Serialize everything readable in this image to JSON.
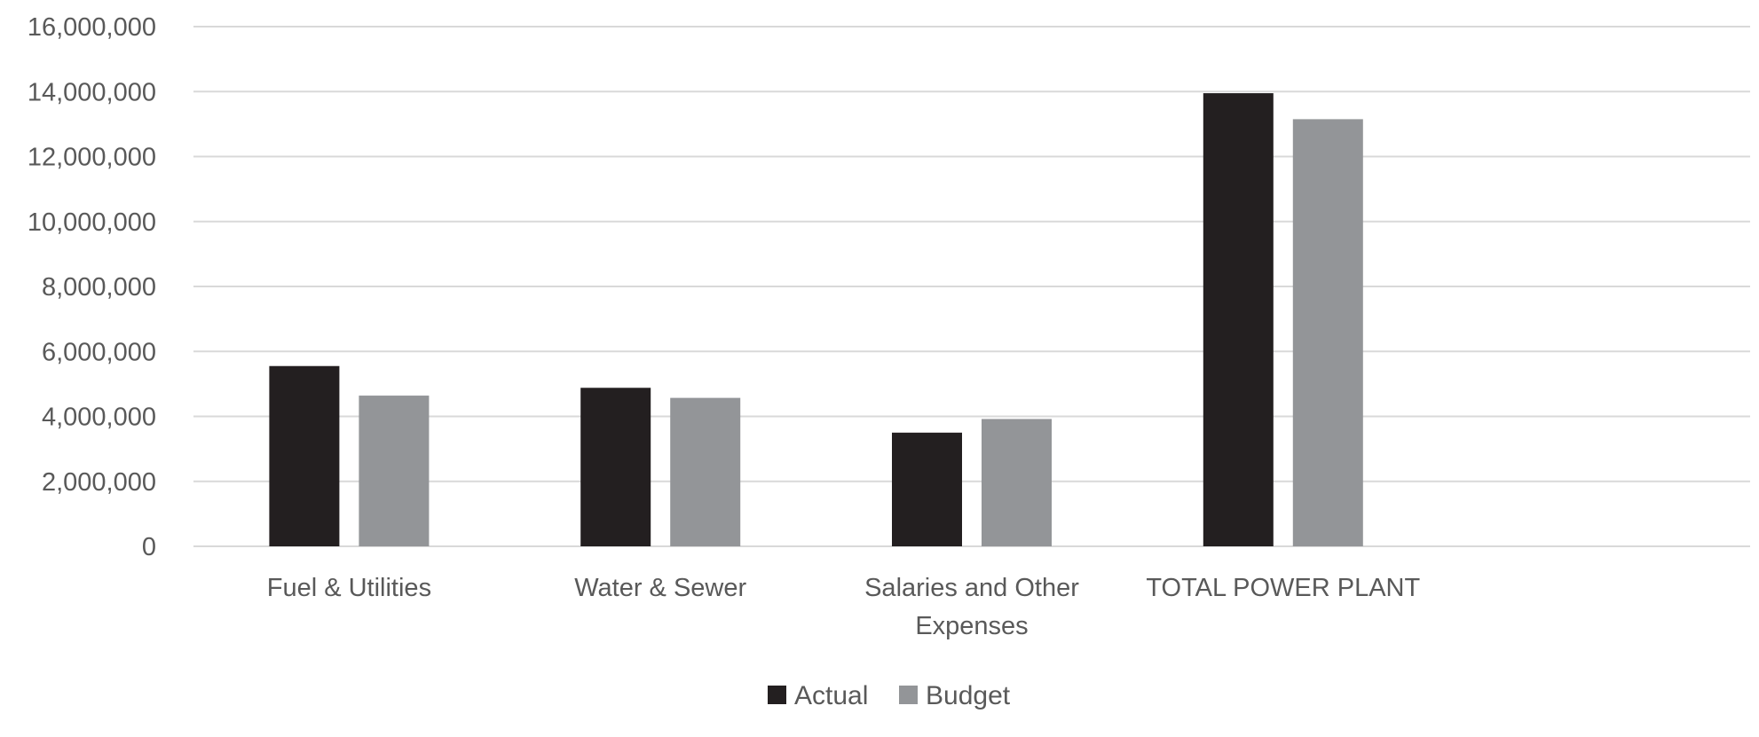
{
  "chart_data": {
    "type": "bar",
    "title": "",
    "xlabel": "",
    "ylabel": "",
    "categories": [
      [
        "Fuel & Utilities"
      ],
      [
        "Water & Sewer"
      ],
      [
        "Salaries and Other",
        "Expenses"
      ],
      [
        "TOTAL POWER PLANT"
      ],
      [
        ""
      ]
    ],
    "series": [
      {
        "name": "Actual",
        "color": "#231f20",
        "values": [
          5550000,
          4880000,
          3500000,
          13950000,
          null
        ]
      },
      {
        "name": "Budget",
        "color": "#939598",
        "values": [
          4640000,
          4570000,
          3920000,
          13150000,
          null
        ]
      }
    ],
    "ylim": [
      0,
      16000000
    ],
    "yticks": [
      0,
      2000000,
      4000000,
      6000000,
      8000000,
      10000000,
      12000000,
      14000000,
      16000000
    ],
    "ytick_labels": [
      "0",
      "2,000,000",
      "4,000,000",
      "6,000,000",
      "8,000,000",
      "10,000,000",
      "12,000,000",
      "14,000,000",
      "16,000,000"
    ],
    "grid": true,
    "legend": {
      "position": "bottom",
      "entries": [
        "Actual",
        "Budget"
      ]
    }
  }
}
